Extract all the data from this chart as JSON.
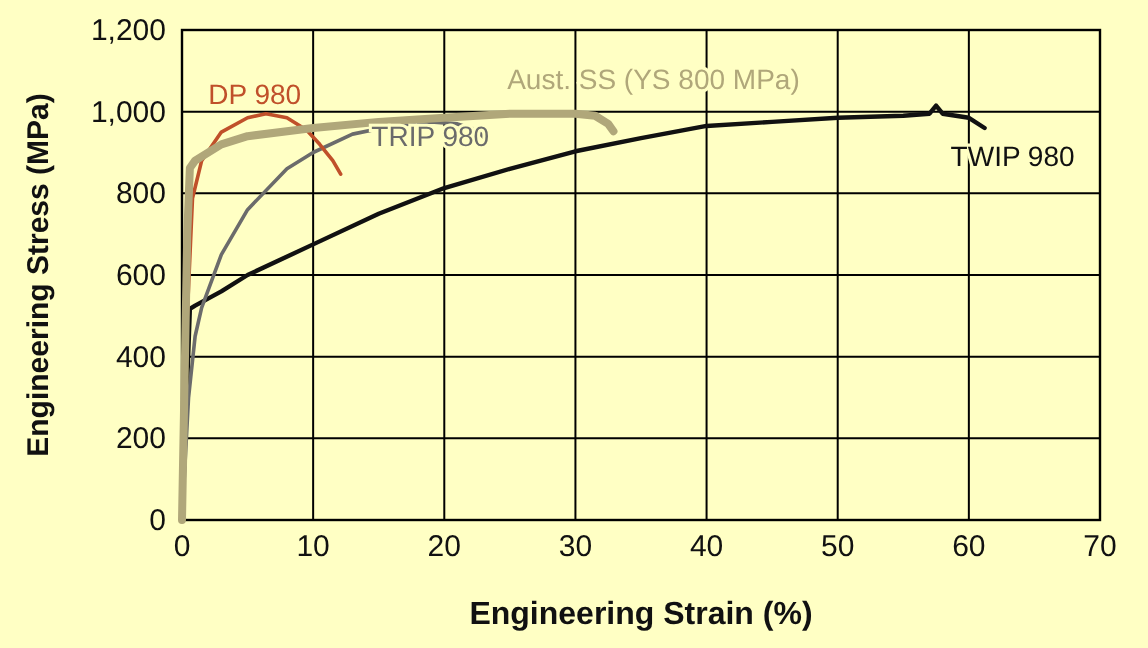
{
  "chart_data": {
    "type": "line",
    "xlabel": "Engineering Strain (%)",
    "ylabel": "Engineering Stress (MPa)",
    "xlim": [
      0,
      70
    ],
    "xticks": [
      0,
      10,
      20,
      30,
      40,
      50,
      60,
      70
    ],
    "ylim": [
      0,
      1200
    ],
    "yticks": [
      0,
      200,
      400,
      600,
      800,
      {
        "value": 1000,
        "label": "1,000"
      },
      {
        "value": 1200,
        "label": "1,200"
      }
    ],
    "grid": true,
    "marker": "none",
    "line_style": "solid",
    "series": [
      {
        "name": "TWIP 980",
        "color": "#111111",
        "x": [
          0,
          0.3,
          0.6,
          1,
          3,
          5,
          10,
          15,
          20,
          25,
          30,
          35,
          40,
          45,
          50,
          55,
          57,
          57.5,
          58,
          60,
          61.2
        ],
        "values": [
          0,
          250,
          517,
          525,
          560,
          600,
          675,
          750,
          813,
          860,
          903,
          935,
          965,
          975,
          985,
          990,
          995,
          1015,
          995,
          985,
          960
        ]
      },
      {
        "name": "TRIP 980",
        "color": "#6b6b6b",
        "x": [
          0,
          0.5,
          1,
          1.5,
          3,
          5,
          8,
          10,
          13,
          16,
          19,
          21,
          22.5,
          23.2
        ],
        "values": [
          0,
          300,
          450,
          520,
          650,
          760,
          860,
          900,
          945,
          965,
          975,
          970,
          955,
          930
        ]
      },
      {
        "name": "DP 980",
        "color": "#c0502a",
        "x": [
          0,
          0.4,
          0.8,
          1.5,
          3,
          5,
          6.4,
          8,
          9.5,
          10.5,
          11.5,
          12.1
        ],
        "values": [
          0,
          500,
          788,
          880,
          950,
          985,
          995,
          985,
          955,
          920,
          880,
          847
        ]
      },
      {
        "name": "Aust. SS (YS 800 MPa)",
        "color": "#b0a77a",
        "x": [
          0,
          0.4,
          0.6,
          1,
          3,
          5,
          10,
          15,
          20,
          25,
          30,
          31.5,
          32.5,
          32.9
        ],
        "values": [
          0,
          700,
          862,
          880,
          920,
          940,
          960,
          975,
          985,
          995,
          995,
          990,
          970,
          952
        ]
      }
    ]
  }
}
